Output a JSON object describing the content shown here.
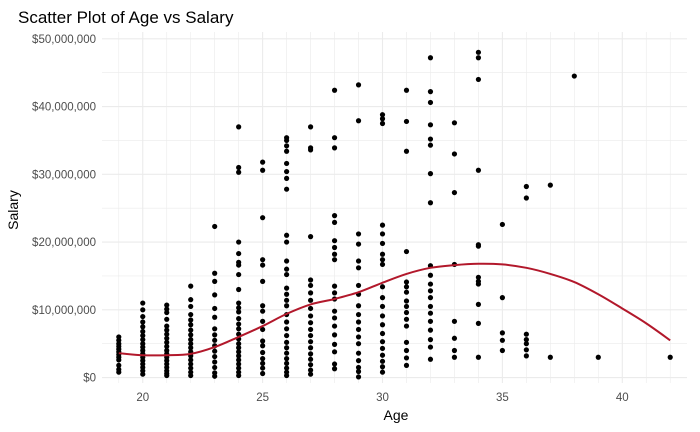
{
  "chart_data": {
    "type": "scatter",
    "title": "Scatter Plot of Age vs Salary",
    "xlabel": "Age",
    "ylabel": "Salary",
    "xlim": [
      18.3,
      42.7
    ],
    "ylim": [
      -800000,
      51000000
    ],
    "x_ticks": [
      {
        "value": 20,
        "label": "20"
      },
      {
        "value": 25,
        "label": "25"
      },
      {
        "value": 30,
        "label": "30"
      },
      {
        "value": 35,
        "label": "35"
      },
      {
        "value": 40,
        "label": "40"
      }
    ],
    "y_ticks": [
      {
        "value": 0,
        "label": "$0"
      },
      {
        "value": 10000000,
        "label": "$10,000,000"
      },
      {
        "value": 20000000,
        "label": "$20,000,000"
      },
      {
        "value": 30000000,
        "label": "$30,000,000"
      },
      {
        "value": 40000000,
        "label": "$40,000,000"
      },
      {
        "value": 50000000,
        "label": "$50,000,000"
      }
    ],
    "grid": true,
    "legend": "none",
    "colors": {
      "points": "#000000",
      "trend": "#b2182b",
      "grid": "#ebebeb"
    },
    "points": [
      [
        19,
        6000000
      ],
      [
        19,
        5500000
      ],
      [
        19,
        5000000
      ],
      [
        19,
        4600000
      ],
      [
        19,
        4200000
      ],
      [
        19,
        3800000
      ],
      [
        19,
        3400000
      ],
      [
        19,
        3000000
      ],
      [
        19,
        2600000
      ],
      [
        19,
        1800000
      ],
      [
        19,
        1200000
      ],
      [
        19,
        800000
      ],
      [
        20,
        11000000
      ],
      [
        20,
        10000000
      ],
      [
        20,
        9000000
      ],
      [
        20,
        8200000
      ],
      [
        20,
        7500000
      ],
      [
        20,
        6800000
      ],
      [
        20,
        6200000
      ],
      [
        20,
        5600000
      ],
      [
        20,
        5000000
      ],
      [
        20,
        4500000
      ],
      [
        20,
        4000000
      ],
      [
        20,
        3500000
      ],
      [
        20,
        3000000
      ],
      [
        20,
        2500000
      ],
      [
        20,
        2000000
      ],
      [
        20,
        1500000
      ],
      [
        20,
        1000000
      ],
      [
        20,
        500000
      ],
      [
        21,
        10700000
      ],
      [
        21,
        10100000
      ],
      [
        21,
        9600000
      ],
      [
        21,
        8600000
      ],
      [
        21,
        7600000
      ],
      [
        21,
        7000000
      ],
      [
        21,
        6400000
      ],
      [
        21,
        5800000
      ],
      [
        21,
        5200000
      ],
      [
        21,
        4600000
      ],
      [
        21,
        4000000
      ],
      [
        21,
        3500000
      ],
      [
        21,
        3000000
      ],
      [
        21,
        2500000
      ],
      [
        21,
        2000000
      ],
      [
        21,
        1500000
      ],
      [
        21,
        1000000
      ],
      [
        21,
        600000
      ],
      [
        21,
        300000
      ],
      [
        22,
        13500000
      ],
      [
        22,
        11500000
      ],
      [
        22,
        10500000
      ],
      [
        22,
        9300000
      ],
      [
        22,
        8500000
      ],
      [
        22,
        7800000
      ],
      [
        22,
        7000000
      ],
      [
        22,
        6300000
      ],
      [
        22,
        5600000
      ],
      [
        22,
        5000000
      ],
      [
        22,
        4400000
      ],
      [
        22,
        3800000
      ],
      [
        22,
        3200000
      ],
      [
        22,
        2600000
      ],
      [
        22,
        2000000
      ],
      [
        22,
        1400000
      ],
      [
        22,
        800000
      ],
      [
        22,
        300000
      ],
      [
        23,
        22300000
      ],
      [
        23,
        15400000
      ],
      [
        23,
        14200000
      ],
      [
        23,
        12200000
      ],
      [
        23,
        10200000
      ],
      [
        23,
        8900000
      ],
      [
        23,
        7200000
      ],
      [
        23,
        6300000
      ],
      [
        23,
        5500000
      ],
      [
        23,
        4700000
      ],
      [
        23,
        3900000
      ],
      [
        23,
        3100000
      ],
      [
        23,
        2300000
      ],
      [
        23,
        1500000
      ],
      [
        23,
        700000
      ],
      [
        23,
        200000
      ],
      [
        24,
        37000000
      ],
      [
        24,
        31000000
      ],
      [
        24,
        30300000
      ],
      [
        24,
        20000000
      ],
      [
        24,
        18300000
      ],
      [
        24,
        17000000
      ],
      [
        24,
        16600000
      ],
      [
        24,
        15200000
      ],
      [
        24,
        13000000
      ],
      [
        24,
        11000000
      ],
      [
        24,
        10300000
      ],
      [
        24,
        9700000
      ],
      [
        24,
        8700000
      ],
      [
        24,
        7900000
      ],
      [
        24,
        7200000
      ],
      [
        24,
        6400000
      ],
      [
        24,
        5700000
      ],
      [
        24,
        5000000
      ],
      [
        24,
        4400000
      ],
      [
        24,
        3800000
      ],
      [
        24,
        3200000
      ],
      [
        24,
        2600000
      ],
      [
        24,
        2000000
      ],
      [
        24,
        1400000
      ],
      [
        24,
        800000
      ],
      [
        24,
        300000
      ],
      [
        25,
        31800000
      ],
      [
        25,
        30600000
      ],
      [
        25,
        23600000
      ],
      [
        25,
        17400000
      ],
      [
        25,
        16600000
      ],
      [
        25,
        14200000
      ],
      [
        25,
        10600000
      ],
      [
        25,
        9800000
      ],
      [
        25,
        8300000
      ],
      [
        25,
        7100000
      ],
      [
        25,
        5400000
      ],
      [
        25,
        4700000
      ],
      [
        25,
        3700000
      ],
      [
        25,
        2800000
      ],
      [
        25,
        2100000
      ],
      [
        25,
        1400000
      ],
      [
        25,
        600000
      ],
      [
        26,
        35400000
      ],
      [
        26,
        35000000
      ],
      [
        26,
        34200000
      ],
      [
        26,
        33400000
      ],
      [
        26,
        31600000
      ],
      [
        26,
        30400000
      ],
      [
        26,
        29400000
      ],
      [
        26,
        27800000
      ],
      [
        26,
        21000000
      ],
      [
        26,
        20000000
      ],
      [
        26,
        17200000
      ],
      [
        26,
        16000000
      ],
      [
        26,
        15200000
      ],
      [
        26,
        13200000
      ],
      [
        26,
        12300000
      ],
      [
        26,
        11400000
      ],
      [
        26,
        10600000
      ],
      [
        26,
        9300000
      ],
      [
        26,
        8200000
      ],
      [
        26,
        7200000
      ],
      [
        26,
        6200000
      ],
      [
        26,
        5200000
      ],
      [
        26,
        4400000
      ],
      [
        26,
        3600000
      ],
      [
        26,
        2800000
      ],
      [
        26,
        2100000
      ],
      [
        26,
        1400000
      ],
      [
        26,
        800000
      ],
      [
        26,
        300000
      ],
      [
        27,
        37000000
      ],
      [
        27,
        33900000
      ],
      [
        27,
        33600000
      ],
      [
        27,
        20800000
      ],
      [
        27,
        14400000
      ],
      [
        27,
        13600000
      ],
      [
        27,
        12500000
      ],
      [
        27,
        11400000
      ],
      [
        27,
        10200000
      ],
      [
        27,
        9100000
      ],
      [
        27,
        8100000
      ],
      [
        27,
        7100000
      ],
      [
        27,
        6200000
      ],
      [
        27,
        5300000
      ],
      [
        27,
        4400000
      ],
      [
        27,
        3500000
      ],
      [
        27,
        2700000
      ],
      [
        27,
        1900000
      ],
      [
        27,
        1100000
      ],
      [
        27,
        500000
      ],
      [
        28,
        42400000
      ],
      [
        28,
        35400000
      ],
      [
        28,
        33900000
      ],
      [
        28,
        23900000
      ],
      [
        28,
        22900000
      ],
      [
        28,
        20200000
      ],
      [
        28,
        19200000
      ],
      [
        28,
        18200000
      ],
      [
        28,
        17400000
      ],
      [
        28,
        13500000
      ],
      [
        28,
        12500000
      ],
      [
        28,
        11600000
      ],
      [
        28,
        9800000
      ],
      [
        28,
        8800000
      ],
      [
        28,
        7600000
      ],
      [
        28,
        6300000
      ],
      [
        28,
        4900000
      ],
      [
        28,
        3800000
      ],
      [
        28,
        2000000
      ],
      [
        28,
        1300000
      ],
      [
        29,
        43200000
      ],
      [
        29,
        37900000
      ],
      [
        29,
        21200000
      ],
      [
        29,
        19700000
      ],
      [
        29,
        17200000
      ],
      [
        29,
        16200000
      ],
      [
        29,
        13600000
      ],
      [
        29,
        12300000
      ],
      [
        29,
        10600000
      ],
      [
        29,
        9300000
      ],
      [
        29,
        8200000
      ],
      [
        29,
        7100000
      ],
      [
        29,
        6000000
      ],
      [
        29,
        5000000
      ],
      [
        29,
        3600000
      ],
      [
        29,
        2500000
      ],
      [
        29,
        1500000
      ],
      [
        29,
        900000
      ],
      [
        29,
        100000
      ],
      [
        30,
        38800000
      ],
      [
        30,
        38200000
      ],
      [
        30,
        37500000
      ],
      [
        30,
        22500000
      ],
      [
        30,
        21200000
      ],
      [
        30,
        19800000
      ],
      [
        30,
        18200000
      ],
      [
        30,
        17400000
      ],
      [
        30,
        16700000
      ],
      [
        30,
        13400000
      ],
      [
        30,
        11800000
      ],
      [
        30,
        10500000
      ],
      [
        30,
        9100000
      ],
      [
        30,
        7800000
      ],
      [
        30,
        6500000
      ],
      [
        30,
        5300000
      ],
      [
        30,
        4300000
      ],
      [
        30,
        3300000
      ],
      [
        30,
        2400000
      ],
      [
        30,
        1600000
      ],
      [
        30,
        800000
      ],
      [
        31,
        42400000
      ],
      [
        31,
        37800000
      ],
      [
        31,
        33400000
      ],
      [
        31,
        18600000
      ],
      [
        31,
        14100000
      ],
      [
        31,
        13400000
      ],
      [
        31,
        12600000
      ],
      [
        31,
        11300000
      ],
      [
        31,
        10500000
      ],
      [
        31,
        9600000
      ],
      [
        31,
        8600000
      ],
      [
        31,
        7600000
      ],
      [
        31,
        5200000
      ],
      [
        31,
        4000000
      ],
      [
        31,
        2900000
      ],
      [
        31,
        1800000
      ],
      [
        32,
        47200000
      ],
      [
        32,
        42200000
      ],
      [
        32,
        40600000
      ],
      [
        32,
        37300000
      ],
      [
        32,
        35200000
      ],
      [
        32,
        34300000
      ],
      [
        32,
        30100000
      ],
      [
        32,
        25800000
      ],
      [
        32,
        16500000
      ],
      [
        32,
        15100000
      ],
      [
        32,
        13800000
      ],
      [
        32,
        12800000
      ],
      [
        32,
        11800000
      ],
      [
        32,
        10500000
      ],
      [
        32,
        9500000
      ],
      [
        32,
        8300000
      ],
      [
        32,
        7000000
      ],
      [
        32,
        5600000
      ],
      [
        32,
        4500000
      ],
      [
        32,
        2700000
      ],
      [
        33,
        37600000
      ],
      [
        33,
        33000000
      ],
      [
        33,
        27300000
      ],
      [
        33,
        16700000
      ],
      [
        33,
        8300000
      ],
      [
        33,
        5800000
      ],
      [
        33,
        4000000
      ],
      [
        33,
        3000000
      ],
      [
        34,
        48000000
      ],
      [
        34,
        47200000
      ],
      [
        34,
        44000000
      ],
      [
        34,
        30600000
      ],
      [
        34,
        19600000
      ],
      [
        34,
        19400000
      ],
      [
        34,
        14800000
      ],
      [
        34,
        14200000
      ],
      [
        34,
        13800000
      ],
      [
        34,
        10800000
      ],
      [
        34,
        8000000
      ],
      [
        34,
        3000000
      ],
      [
        35,
        22600000
      ],
      [
        35,
        11800000
      ],
      [
        35,
        6600000
      ],
      [
        35,
        5500000
      ],
      [
        35,
        4000000
      ],
      [
        36,
        28200000
      ],
      [
        36,
        26500000
      ],
      [
        36,
        6400000
      ],
      [
        36,
        5600000
      ],
      [
        36,
        5000000
      ],
      [
        36,
        4100000
      ],
      [
        36,
        3200000
      ],
      [
        37,
        28400000
      ],
      [
        37,
        3000000
      ],
      [
        38,
        44500000
      ],
      [
        39,
        3000000
      ],
      [
        42,
        3000000
      ]
    ],
    "trend": [
      [
        19,
        3600000
      ],
      [
        20,
        3300000
      ],
      [
        21,
        3300000
      ],
      [
        22,
        3500000
      ],
      [
        23,
        4500000
      ],
      [
        24,
        6000000
      ],
      [
        25,
        7600000
      ],
      [
        26,
        9400000
      ],
      [
        27,
        10800000
      ],
      [
        28,
        11600000
      ],
      [
        29,
        12600000
      ],
      [
        30,
        14000000
      ],
      [
        31,
        15300000
      ],
      [
        32,
        16200000
      ],
      [
        33,
        16600000
      ],
      [
        34,
        16800000
      ],
      [
        35,
        16700000
      ],
      [
        36,
        16200000
      ],
      [
        37,
        15300000
      ],
      [
        38,
        14100000
      ],
      [
        39,
        12300000
      ],
      [
        40,
        10200000
      ],
      [
        41,
        8000000
      ],
      [
        42,
        5500000
      ]
    ]
  }
}
